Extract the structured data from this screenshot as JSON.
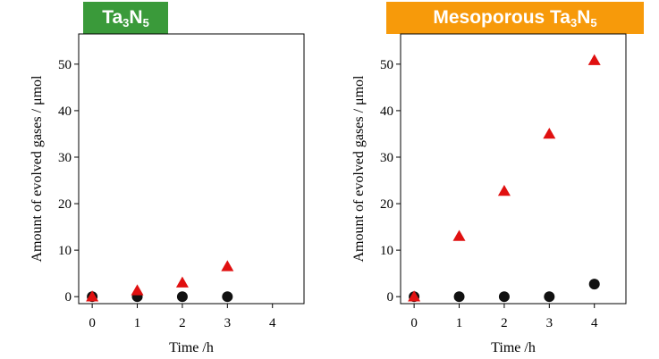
{
  "colors": {
    "left_title_bg": "#3a9a3a",
    "right_title_bg": "#f79a0a",
    "h2_marker": "#e01010",
    "n2_marker": "#111111"
  },
  "chart_data": [
    {
      "type": "scatter",
      "title": {
        "base": "Ta",
        "sub1": "3",
        "mid": "N",
        "sub2": "5"
      },
      "xlabel": "Time /h",
      "ylabel": "Amount of evolved gases / μmol",
      "xlim": [
        -0.3,
        4.7
      ],
      "ylim": [
        -1.5,
        56.5
      ],
      "xticks": [
        "0",
        "1",
        "2",
        "3",
        "4"
      ],
      "yticks": [
        "0",
        "10",
        "20",
        "30",
        "40",
        "50"
      ],
      "grid": false,
      "series": [
        {
          "marker": "triangle",
          "points": [
            [
              0,
              0
            ],
            [
              1,
              1.3
            ],
            [
              2,
              3.0
            ],
            [
              3,
              6.5
            ]
          ]
        },
        {
          "marker": "circle",
          "points": [
            [
              0,
              0
            ],
            [
              1,
              0
            ],
            [
              2,
              0
            ],
            [
              3,
              0
            ]
          ]
        }
      ]
    },
    {
      "type": "scatter",
      "title": {
        "base": "Mesoporous Ta",
        "sub1": "3",
        "mid": "N",
        "sub2": "5"
      },
      "xlabel": "Time /h",
      "ylabel": "Amount of evolved gases / μmol",
      "xlim": [
        -0.3,
        4.7
      ],
      "ylim": [
        -1.5,
        56.5
      ],
      "xticks": [
        "0",
        "1",
        "2",
        "3",
        "4"
      ],
      "yticks": [
        "0",
        "10",
        "20",
        "30",
        "40",
        "50"
      ],
      "grid": false,
      "series": [
        {
          "marker": "triangle",
          "points": [
            [
              0,
              0
            ],
            [
              1,
              13.0
            ],
            [
              2,
              22.7
            ],
            [
              3,
              35.0
            ],
            [
              4,
              50.8
            ]
          ]
        },
        {
          "marker": "circle",
          "points": [
            [
              0,
              0
            ],
            [
              1,
              0
            ],
            [
              2,
              0
            ],
            [
              3,
              0
            ],
            [
              4,
              2.7
            ]
          ]
        }
      ]
    }
  ]
}
